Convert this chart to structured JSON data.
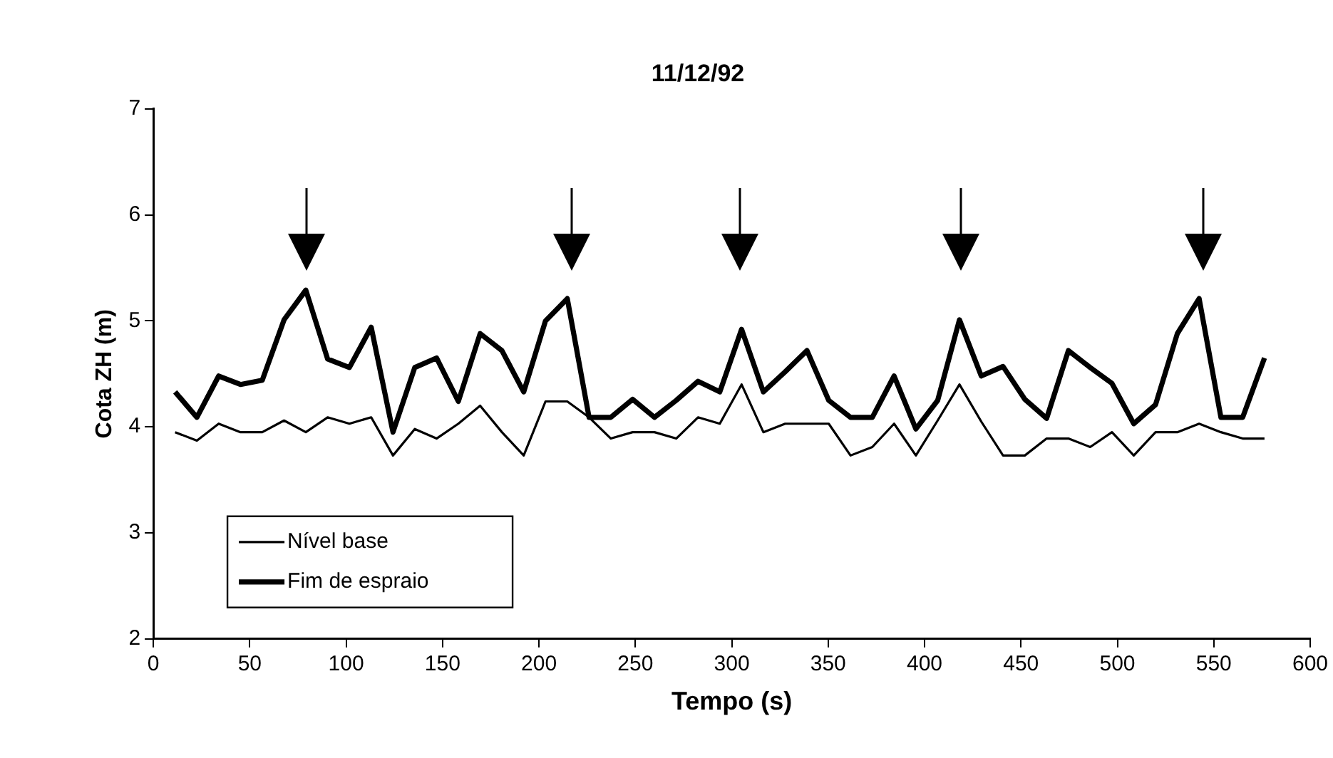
{
  "chart_data": {
    "type": "line",
    "title": "11/12/92",
    "xlabel": "Tempo (s)",
    "ylabel": "Cota ZH (m)",
    "x": [
      11.3,
      22.6,
      33.9,
      45.2,
      56.5,
      67.8,
      79.1,
      90.4,
      101.7,
      113,
      124.3,
      135.6,
      146.9,
      158.2,
      169.5,
      180.8,
      192.1,
      203.4,
      214.7,
      226,
      237.3,
      248.6,
      259.9,
      271.2,
      282.5,
      293.8,
      305.1,
      316.4,
      327.7,
      339,
      350.3,
      361.6,
      372.9,
      384.2,
      395.5,
      406.8,
      418.1,
      429.4,
      440.7,
      452,
      463.3,
      474.6,
      485.9,
      497.2,
      508.5,
      519.8,
      531.1,
      542.4,
      553.7,
      565,
      576.3
    ],
    "series": [
      {
        "name": "Nível base",
        "color": "#000000",
        "values": [
          3.95,
          3.87,
          4.03,
          3.95,
          3.95,
          4.06,
          3.95,
          4.09,
          4.03,
          4.09,
          3.73,
          3.98,
          3.89,
          4.03,
          4.2,
          3.95,
          3.73,
          4.24,
          4.24,
          4.09,
          3.89,
          3.95,
          3.95,
          3.89,
          4.09,
          4.03,
          4.4,
          3.95,
          4.03,
          4.03,
          4.03,
          3.73,
          3.81,
          4.03,
          3.73,
          4.06,
          4.4,
          4.05,
          3.73,
          3.73,
          3.89,
          3.89,
          3.81,
          3.95,
          3.73,
          3.95,
          3.95,
          4.03,
          3.95,
          3.89,
          3.89
        ]
      },
      {
        "name": "Fim de espraio",
        "color": "#000000",
        "values": [
          4.33,
          4.09,
          4.48,
          4.4,
          4.44,
          5.01,
          5.29,
          4.64,
          4.56,
          4.94,
          3.95,
          4.56,
          4.65,
          4.24,
          4.88,
          4.72,
          4.33,
          5.0,
          5.21,
          4.09,
          4.09,
          4.26,
          4.09,
          4.25,
          4.43,
          4.33,
          4.92,
          4.33,
          4.52,
          4.72,
          4.25,
          4.09,
          4.09,
          4.48,
          3.98,
          4.25,
          5.01,
          4.48,
          4.57,
          4.26,
          4.08,
          4.72,
          4.56,
          4.41,
          4.03,
          4.21,
          4.88,
          5.21,
          4.09,
          4.09,
          4.65
        ]
      }
    ],
    "xlim": [
      0,
      600
    ],
    "xticks": [
      0,
      50,
      100,
      150,
      200,
      250,
      300,
      350,
      400,
      450,
      500,
      550,
      600
    ],
    "ylim": [
      2,
      7
    ],
    "yticks": [
      2,
      3,
      4,
      5,
      6,
      7
    ],
    "grid": false,
    "legend": "bottom left",
    "marker": "none",
    "line_style": "solid"
  }
}
